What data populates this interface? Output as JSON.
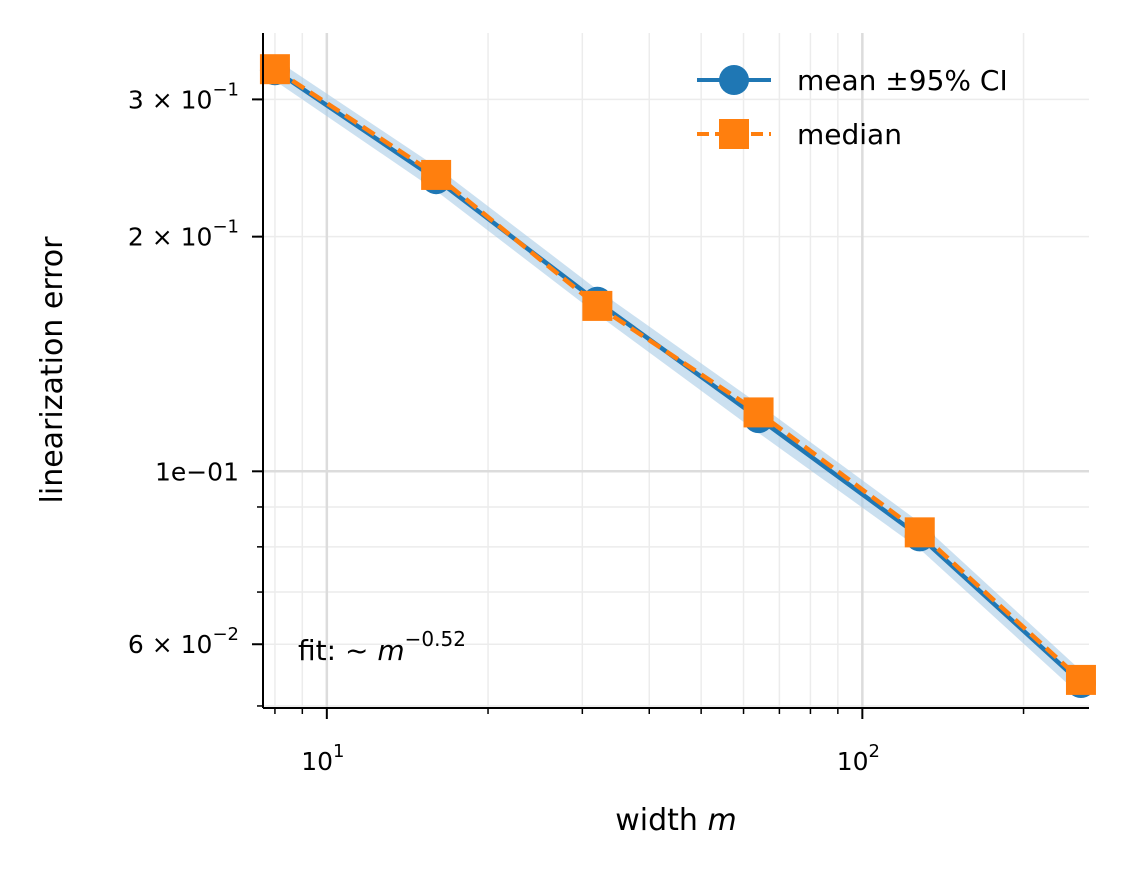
{
  "chart_data": {
    "type": "line",
    "xscale": "log",
    "yscale": "log",
    "xlim": [
      7.6,
      265
    ],
    "ylim": [
      0.0497,
      0.365
    ],
    "xlabel": "width",
    "xlabel_var": "m",
    "ylabel": "linearization error",
    "grid": true,
    "legend_position": "upper-right",
    "x": [
      8,
      16,
      32,
      64,
      128,
      256
    ],
    "series": [
      {
        "name": "mean ±95% CI",
        "color": "#1f77b4",
        "marker": "circle",
        "line": "solid",
        "values": [
          0.327,
          0.237,
          0.165,
          0.117,
          0.0825,
          0.0535
        ],
        "ci_lower": [
          0.317,
          0.229,
          0.159,
          0.112,
          0.0795,
          0.0515
        ],
        "ci_upper": [
          0.338,
          0.246,
          0.171,
          0.122,
          0.086,
          0.0555
        ],
        "ci_color": "#a8cce6"
      },
      {
        "name": "median",
        "color": "#ff7f0e",
        "marker": "square",
        "line": "dashed",
        "values": [
          0.328,
          0.24,
          0.163,
          0.119,
          0.0835,
          0.054
        ]
      }
    ],
    "x_ticks": [
      {
        "value": 10,
        "base": "10",
        "exp": "1"
      },
      {
        "value": 100,
        "base": "10",
        "exp": "2"
      }
    ],
    "y_ticks": [
      {
        "value": 0.3,
        "mant": "3",
        "base": "× 10",
        "exp": "−1"
      },
      {
        "value": 0.2,
        "mant": "2",
        "base": "× 10",
        "exp": "−1"
      },
      {
        "value": 0.1,
        "text": "1e−01"
      },
      {
        "value": 0.06,
        "mant": "6",
        "base": "× 10",
        "exp": "−2"
      }
    ],
    "annotation": {
      "prefix": "fit:",
      "tilde": "~",
      "var": "m",
      "exp": "−0.52"
    }
  }
}
